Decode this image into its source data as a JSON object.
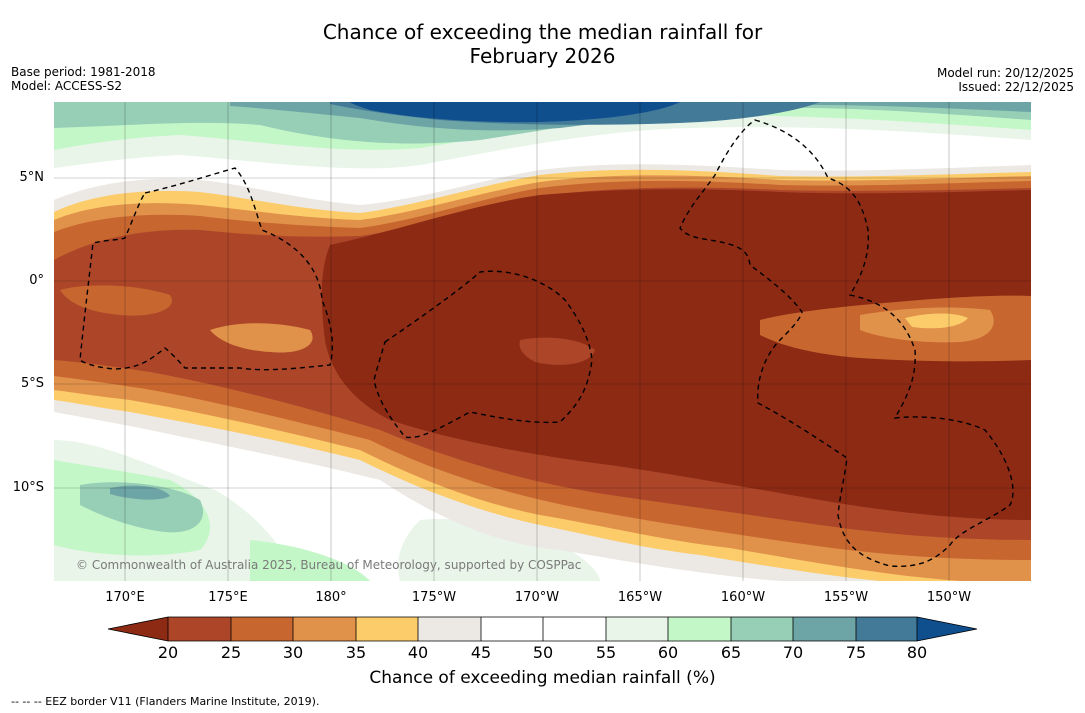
{
  "title_line1": "Chance of exceeding the median rainfall for",
  "title_line2": "February 2026",
  "base_period": "Base period: 1981-2018",
  "model": "Model: ACCESS-S2",
  "model_run": "Model run: 20/12/2025",
  "issued": "Issued: 22/12/2025",
  "lat_labels": [
    "5°N",
    "0°",
    "5°S",
    "10°S"
  ],
  "lon_labels": [
    "170°E",
    "175°E",
    "180°",
    "175°W",
    "170°W",
    "165°W",
    "160°W",
    "155°W",
    "150°W"
  ],
  "copyright": "© Commonwealth of Australia 2025, Bureau of Meteorology, supported by COSPPac",
  "colorbar": {
    "ticks": [
      "20",
      "25",
      "30",
      "35",
      "40",
      "45",
      "50",
      "55",
      "60",
      "65",
      "70",
      "75",
      "80"
    ],
    "label": "Chance of exceeding median rainfall (%)",
    "colors": [
      "#8c2a14",
      "#ad4629",
      "#c86630",
      "#e0924a",
      "#fccb6a",
      "#ece9e4",
      "#ffffff",
      "#ffffff",
      "#e8f5e8",
      "#c4f7c8",
      "#97ceb6",
      "#6da4a6",
      "#427a98",
      "#0f4f8e"
    ]
  },
  "footer": "--  --  -- EEZ border V11 (Flanders Marine Institute, 2019)."
}
